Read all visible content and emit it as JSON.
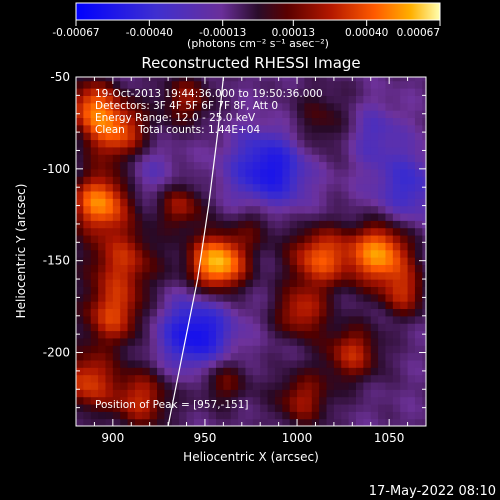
{
  "chart_data": {
    "type": "heatmap",
    "title": "Reconstructed RHESSI Image",
    "xlabel": "Heliocentric X (arcsec)",
    "ylabel": "Heliocentric Y (arcsec)",
    "xlim": [
      880,
      1070
    ],
    "ylim": [
      -240,
      -50
    ],
    "x_ticks": [
      900,
      950,
      1000,
      1050
    ],
    "y_ticks": [
      -50,
      -100,
      -150,
      -200
    ],
    "colorbar": {
      "min": -0.00067,
      "max": 0.00067,
      "ticks": [
        {
          "value": -0.00067,
          "label": "-0.00067"
        },
        {
          "value": -0.0004,
          "label": "-0.00040"
        },
        {
          "value": -0.00013,
          "label": "-0.00013"
        },
        {
          "value": 0.00013,
          "label": "0.00013"
        },
        {
          "value": 0.0004,
          "label": "0.00040"
        },
        {
          "value": 0.00067,
          "label": "0.00067"
        }
      ],
      "unit_label": "(photons cm⁻² s⁻¹ asec⁻²)"
    },
    "annotations": [
      "19-Oct-2013 19:44:36.000 to 19:50:36.000",
      "Detectors: 3F 4F 5F 6F 7F 8F, Att 0",
      "Energy Range: 12.0 - 25.0 keV",
      "Clean    Total counts: 1.44E+04"
    ],
    "peak_label": "Position of Peak = [957,-151]",
    "peak": {
      "x": 957,
      "y": -151
    },
    "limb_curve": [
      {
        "x": 930,
        "y": -240
      },
      {
        "x": 938,
        "y": -200
      },
      {
        "x": 946,
        "y": -160
      },
      {
        "x": 952,
        "y": -120
      },
      {
        "x": 957,
        "y": -80
      },
      {
        "x": 960,
        "y": -50
      }
    ],
    "sources": [
      {
        "x": 957,
        "y": -151,
        "amp": 0.00067,
        "w": 11
      },
      {
        "x": 1045,
        "y": -146,
        "amp": 0.00058,
        "w": 12
      },
      {
        "x": 893,
        "y": -118,
        "amp": 0.00055,
        "w": 11
      },
      {
        "x": 902,
        "y": -80,
        "amp": 0.00045,
        "w": 12
      },
      {
        "x": 888,
        "y": -65,
        "amp": 0.0004,
        "w": 10
      },
      {
        "x": 905,
        "y": -150,
        "amp": 0.00035,
        "w": 14
      },
      {
        "x": 900,
        "y": -180,
        "amp": 0.00038,
        "w": 12
      },
      {
        "x": 885,
        "y": -215,
        "amp": 0.0004,
        "w": 11
      },
      {
        "x": 915,
        "y": -225,
        "amp": 0.00035,
        "w": 12
      },
      {
        "x": 937,
        "y": -120,
        "amp": 0.0003,
        "w": 9
      },
      {
        "x": 940,
        "y": -62,
        "amp": 0.00028,
        "w": 10
      },
      {
        "x": 1012,
        "y": -148,
        "amp": 0.00045,
        "w": 12
      },
      {
        "x": 1002,
        "y": -178,
        "amp": 0.00035,
        "w": 10
      },
      {
        "x": 1030,
        "y": -200,
        "amp": 0.00035,
        "w": 11
      },
      {
        "x": 1003,
        "y": -225,
        "amp": 0.0003,
        "w": 11
      },
      {
        "x": 1058,
        "y": -168,
        "amp": 0.0003,
        "w": 9
      },
      {
        "x": 1015,
        "y": -75,
        "amp": 0.0002,
        "w": 14
      },
      {
        "x": 960,
        "y": -215,
        "amp": 0.00025,
        "w": 10
      },
      {
        "x": 978,
        "y": -130,
        "amp": 0.00018,
        "w": 9
      },
      {
        "x": 985,
        "y": -100,
        "amp": -0.00042,
        "w": 15
      },
      {
        "x": 945,
        "y": -190,
        "amp": -0.00045,
        "w": 14
      },
      {
        "x": 1060,
        "y": -110,
        "amp": -0.00025,
        "w": 14
      },
      {
        "x": 1040,
        "y": -80,
        "amp": -0.0002,
        "w": 12
      },
      {
        "x": 920,
        "y": -100,
        "amp": -0.00015,
        "w": 10
      }
    ]
  },
  "footer_timestamp": "17-May-2022 08:10"
}
